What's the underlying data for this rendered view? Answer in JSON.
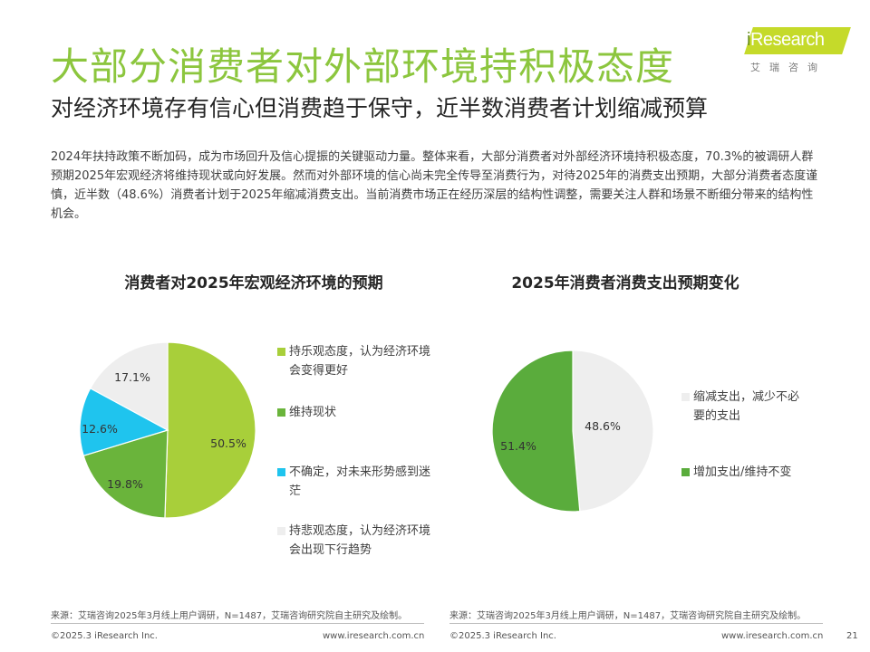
{
  "header": {
    "title": "大部分消费者对外部环境持积极态度",
    "subtitle": "对经济环境存有信心但消费趋于保守，近半数消费者计划缩减预算",
    "logo_text": "iResearch",
    "logo_cn": "艾瑞咨询"
  },
  "intro": "2024年扶持政策不断加码，成为市场回升及信心提振的关键驱动力量。整体来看，大部分消费者对外部经济环境持积极态度，70.3%的被调研人群预期2025年宏观经济将维持现状或向好发展。然而对外部环境的信心尚未完全传导至消费行为，对待2025年的消费支出预期，大部分消费者态度谨慎，近半数（48.6%）消费者计划于2025年缩减消费支出。当前消费市场正在经历深层的结构性调整，需要关注人群和场景不断细分带来的结构性机会。",
  "chart_data": [
    {
      "type": "pie",
      "title": "消费者对2025年宏观经济环境的预期",
      "slices": [
        {
          "label": "持乐观态度，认为经济环境会变得更好",
          "value": 50.5,
          "display": "50.5%",
          "color": "#a8cf3a",
          "label_color": "#333333"
        },
        {
          "label": "维持现状",
          "value": 19.8,
          "display": "19.8%",
          "color": "#6ab43b",
          "label_color": "#333333"
        },
        {
          "label": "不确定，对未来形势感到迷茫",
          "value": 12.6,
          "display": "12.6%",
          "color": "#1fc4ee",
          "label_color": "#333333"
        },
        {
          "label": "持悲观态度，认为经济环境会出现下行趋势",
          "value": 17.1,
          "display": "17.1%",
          "color": "#eeeeee",
          "label_color": "#333333"
        }
      ]
    },
    {
      "type": "pie",
      "title": "2025年消费者消费支出预期变化",
      "slices": [
        {
          "label": "缩减支出，减少不必要的支出",
          "value": 48.6,
          "display": "48.6%",
          "color": "#eeeeee",
          "label_color": "#333333"
        },
        {
          "label": "增加支出/维持不变",
          "value": 51.4,
          "display": "51.4%",
          "color": "#5aac3c",
          "label_color": "#333333"
        }
      ]
    }
  ],
  "footer": {
    "source_left": "来源：艾瑞咨询2025年3月线上用户调研，N=1487，艾瑞咨询研究院自主研究及绘制。",
    "source_right": "来源：艾瑞咨询2025年3月线上用户调研，N=1487，艾瑞咨询研究院自主研究及绘制。",
    "copyright_left": "©2025.3 iResearch Inc.",
    "url_left": "www.iresearch.com.cn",
    "copyright_right": "©2025.3 iResearch Inc.",
    "url_right": "www.iresearch.com.cn",
    "page_number": "21"
  }
}
